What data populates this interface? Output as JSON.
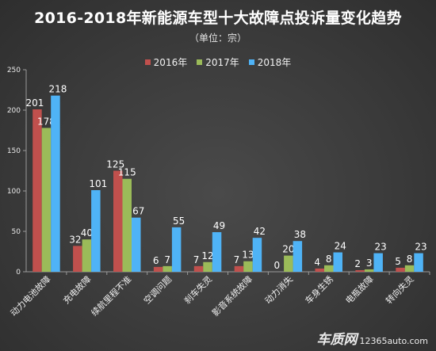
{
  "header": {
    "title": "2016-2018年新能源车型十大故障点投诉量变化趋势",
    "subtitle": "（单位：宗）"
  },
  "watermark": {
    "brand": "车质网",
    "url": "12365auto.com"
  },
  "chart_data": {
    "type": "bar",
    "categories": [
      "动力电池故障",
      "充电故障",
      "续航里程不准",
      "空调问题",
      "刹车失灵",
      "影音系统故障",
      "动力消失",
      "车身生锈",
      "电瓶故障",
      "转向失灵"
    ],
    "series": [
      {
        "name": "2016年",
        "color": "#c0504d",
        "values": [
          201,
          32,
          125,
          6,
          7,
          7,
          0,
          4,
          2,
          5
        ]
      },
      {
        "name": "2017年",
        "color": "#9bbb59",
        "values": [
          178,
          40,
          115,
          7,
          12,
          13,
          20,
          8,
          3,
          8
        ]
      },
      {
        "name": "2018年",
        "color": "#4fb3f6",
        "values": [
          218,
          101,
          67,
          55,
          49,
          42,
          38,
          24,
          23,
          23
        ]
      }
    ],
    "title": "2016-2018年新能源车型十大故障点投诉量变化趋势",
    "xlabel": "",
    "ylabel": "",
    "ylim": [
      0,
      250
    ],
    "yticks": [
      "0",
      "50",
      "100",
      "150",
      "200",
      "250"
    ],
    "grid": false,
    "legend": "top-center"
  }
}
